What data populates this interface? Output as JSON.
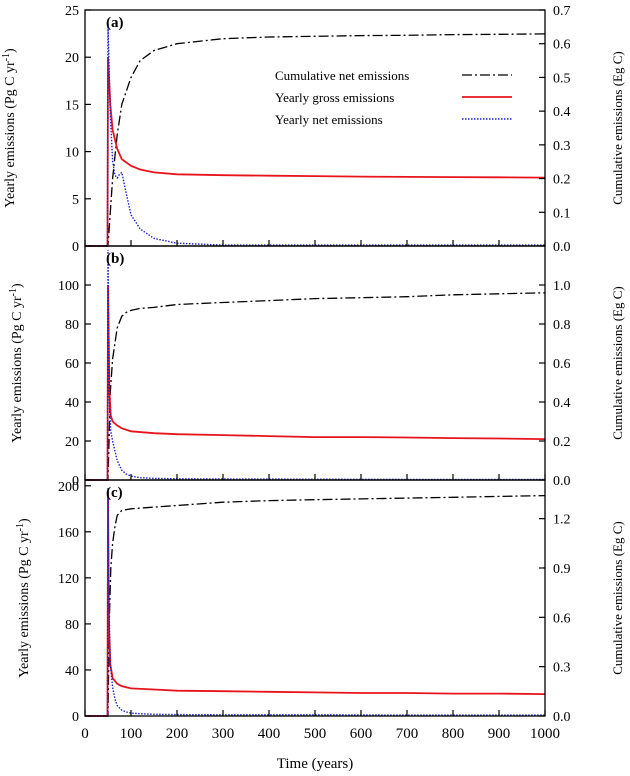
{
  "chart_data": [
    {
      "type": "line",
      "panel_label": "(a)",
      "xlabel": "Time (years)",
      "ylabel": "Yearly emissions (Pg C yr",
      "ylabel_sup": "-1",
      "ylabel_end": ")",
      "y2label": "Cumulative emissions (Eg C)",
      "xlim": [
        0,
        1000
      ],
      "ylim": [
        0,
        25
      ],
      "y2lim": [
        0,
        0.7
      ],
      "yticks": [
        "0",
        "5",
        "10",
        "15",
        "20",
        "25"
      ],
      "y2ticks": [
        "0.0",
        "0.1",
        "0.2",
        "0.3",
        "0.4",
        "0.5",
        "0.6",
        "0.7"
      ],
      "legend_position": "top-right",
      "legend": [
        "Cumulative net emissions",
        "Yearly gross emissions",
        "Yearly net emissions"
      ],
      "series": [
        {
          "name": "Cumulative net emissions",
          "axis": "right",
          "color": "#000000",
          "style": "dash-dot",
          "x": [
            0,
            50,
            60,
            70,
            80,
            100,
            120,
            150,
            200,
            300,
            400,
            500,
            600,
            700,
            800,
            900,
            1000
          ],
          "y": [
            0,
            0,
            0.2,
            0.33,
            0.42,
            0.5,
            0.55,
            0.58,
            0.6,
            0.615,
            0.62,
            0.622,
            0.624,
            0.625,
            0.627,
            0.628,
            0.629
          ]
        },
        {
          "name": "Yearly gross emissions",
          "axis": "left",
          "color": "#e8141c",
          "style": "solid",
          "x": [
            0,
            49,
            50,
            55,
            60,
            70,
            80,
            100,
            120,
            150,
            200,
            300,
            400,
            500,
            600,
            700,
            800,
            900,
            1000
          ],
          "y": [
            0,
            0,
            20,
            15,
            12.3,
            10.3,
            9.2,
            8.5,
            8.1,
            7.8,
            7.6,
            7.5,
            7.45,
            7.4,
            7.35,
            7.32,
            7.3,
            7.28,
            7.25
          ]
        },
        {
          "name": "Yearly net emissions",
          "axis": "left",
          "color": "#1a22c8",
          "style": "dotted",
          "x": [
            0,
            49,
            50,
            55,
            60,
            65,
            70,
            75,
            80,
            90,
            100,
            120,
            150,
            200,
            300,
            400,
            500,
            600,
            700,
            800,
            900,
            1000
          ],
          "y": [
            0,
            0,
            23.5,
            14,
            9,
            7.5,
            7.2,
            7.6,
            7.8,
            5.5,
            3.3,
            1.8,
            0.8,
            0.3,
            0.1,
            0.1,
            0.1,
            0.1,
            0.1,
            0.1,
            0.1,
            0.1
          ]
        }
      ]
    },
    {
      "type": "line",
      "panel_label": "(b)",
      "xlabel": "Time (years)",
      "ylabel": "Yearly emissions (Pg C yr",
      "ylabel_sup": "-1",
      "ylabel_end": ")",
      "y2label": "Cumulative emissions (Eg C)",
      "xlim": [
        0,
        1000
      ],
      "ylim": [
        0,
        120
      ],
      "y2lim": [
        0,
        1.2
      ],
      "yticks": [
        "0",
        "20",
        "40",
        "60",
        "80",
        "100"
      ],
      "y2ticks": [
        "0.0",
        "0.2",
        "0.4",
        "0.6",
        "0.8",
        "1.0"
      ],
      "series": [
        {
          "name": "Cumulative net emissions",
          "axis": "right",
          "color": "#000000",
          "style": "dash-dot",
          "x": [
            0,
            50,
            55,
            60,
            70,
            80,
            90,
            100,
            120,
            150,
            200,
            300,
            400,
            500,
            600,
            700,
            800,
            900,
            1000
          ],
          "y": [
            0,
            0,
            0.45,
            0.62,
            0.78,
            0.84,
            0.86,
            0.87,
            0.88,
            0.885,
            0.9,
            0.91,
            0.92,
            0.93,
            0.935,
            0.94,
            0.95,
            0.955,
            0.96
          ]
        },
        {
          "name": "Yearly gross emissions",
          "axis": "left",
          "color": "#e8141c",
          "style": "solid",
          "x": [
            0,
            49,
            50,
            53,
            56,
            60,
            70,
            80,
            100,
            150,
            200,
            300,
            400,
            500,
            600,
            700,
            800,
            900,
            1000
          ],
          "y": [
            0,
            0,
            100,
            45,
            33,
            30,
            28,
            26.5,
            25,
            24,
            23.5,
            23,
            22.5,
            22,
            22,
            21.8,
            21.5,
            21.3,
            21
          ]
        },
        {
          "name": "Yearly net emissions",
          "axis": "left",
          "color": "#1a22c8",
          "style": "dotted",
          "x": [
            0,
            49,
            50,
            53,
            56,
            60,
            65,
            70,
            80,
            90,
            100,
            120,
            150,
            200,
            300,
            500,
            700,
            1000
          ],
          "y": [
            0,
            0,
            118,
            40,
            25,
            20,
            15,
            10,
            5,
            3,
            2,
            1.2,
            0.8,
            0.6,
            0.5,
            0.4,
            0.3,
            0.3
          ]
        }
      ]
    },
    {
      "type": "line",
      "panel_label": "(c)",
      "xlabel": "Time (years)",
      "ylabel": "Yearly emissions (Pg C yr",
      "ylabel_sup": "-1",
      "ylabel_end": ")",
      "y2label": "Cumulative emissions (Eg C)",
      "xlim": [
        0,
        1000
      ],
      "ylim": [
        0,
        205
      ],
      "y2lim": [
        0,
        1.435
      ],
      "yticks": [
        "0",
        "40",
        "80",
        "120",
        "160",
        "200"
      ],
      "y2ticks": [
        "0.0",
        "0.3",
        "0.6",
        "0.9",
        "1.2"
      ],
      "xticks": [
        "0",
        "100",
        "200",
        "300",
        "400",
        "500",
        "600",
        "700",
        "800",
        "900",
        "1000"
      ],
      "series": [
        {
          "name": "Cumulative net emissions",
          "axis": "right",
          "color": "#000000",
          "style": "dash-dot",
          "x": [
            0,
            50,
            53,
            56,
            60,
            65,
            70,
            80,
            100,
            150,
            200,
            300,
            400,
            500,
            600,
            700,
            800,
            900,
            1000
          ],
          "y": [
            0,
            0,
            0.6,
            0.9,
            1.05,
            1.15,
            1.22,
            1.25,
            1.26,
            1.27,
            1.28,
            1.3,
            1.31,
            1.315,
            1.32,
            1.325,
            1.33,
            1.335,
            1.34
          ]
        },
        {
          "name": "Yearly gross emissions",
          "axis": "left",
          "color": "#e8141c",
          "style": "solid",
          "x": [
            0,
            49,
            50,
            52,
            55,
            60,
            70,
            80,
            100,
            150,
            200,
            300,
            400,
            500,
            600,
            700,
            800,
            900,
            1000
          ],
          "y": [
            0,
            0,
            195,
            80,
            45,
            33,
            28,
            26,
            24,
            23,
            22,
            21.5,
            21,
            20.5,
            20,
            20,
            19.5,
            19.5,
            19
          ]
        },
        {
          "name": "Yearly net emissions",
          "axis": "left",
          "color": "#1a22c8",
          "style": "dotted",
          "x": [
            0,
            49,
            50,
            52,
            55,
            60,
            65,
            70,
            80,
            90,
            100,
            120,
            150,
            200,
            300,
            500,
            700,
            1000
          ],
          "y": [
            0,
            0,
            198,
            100,
            45,
            25,
            15,
            9,
            5,
            3.5,
            2.5,
            2,
            1.5,
            1.2,
            1,
            1,
            0.8,
            0.8
          ]
        }
      ]
    }
  ]
}
